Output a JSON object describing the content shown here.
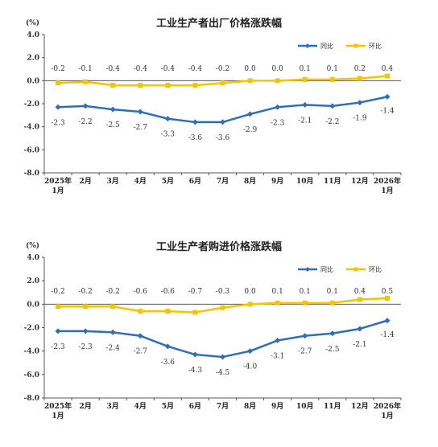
{
  "chart_data": [
    {
      "type": "line",
      "title": "工业生产者出厂价格涨跌幅",
      "unit": "(%)",
      "ylim": [
        -8.0,
        4.0
      ],
      "yticks": [
        "4.0",
        "2.0",
        "0.0",
        "-2.0",
        "-4.0",
        "-6.0",
        "-8.0"
      ],
      "categories": [
        "2025年|1月",
        "2月",
        "3月",
        "4月",
        "5月",
        "6月",
        "7月",
        "8月",
        "9月",
        "10月",
        "11月",
        "12月",
        "2026年|1月"
      ],
      "grid": false,
      "legend_position": "top-right",
      "series": [
        {
          "name": "同比",
          "color": "#2e6fb7",
          "values": [
            -2.3,
            -2.2,
            -2.5,
            -2.7,
            -3.3,
            -3.6,
            -3.6,
            -2.9,
            -2.3,
            -2.1,
            -2.2,
            -1.9,
            -1.4
          ],
          "labels": [
            "-2.3",
            "-2.2",
            "-2.5",
            "-2.7",
            "-3.3",
            "-3.6",
            "-3.6",
            "-2.9",
            "-2.3",
            "-2.1",
            "-2.2",
            "-1.9",
            "-1.4"
          ]
        },
        {
          "name": "环比",
          "color": "#f5c400",
          "values": [
            -0.2,
            -0.1,
            -0.4,
            -0.4,
            -0.4,
            -0.4,
            -0.2,
            0.0,
            0.0,
            0.1,
            0.1,
            0.2,
            0.4
          ],
          "labels": [
            "-0.2",
            "-0.1",
            "-0.4",
            "-0.4",
            "-0.4",
            "-0.4",
            "-0.2",
            "0.0",
            "0.0",
            "0.1",
            "0.1",
            "0.2",
            "0.4"
          ]
        }
      ]
    },
    {
      "type": "line",
      "title": "工业生产者购进价格涨跌幅",
      "unit": "(%)",
      "ylim": [
        -8.0,
        4.0
      ],
      "yticks": [
        "4.0",
        "2.0",
        "0.0",
        "-2.0",
        "-4.0",
        "-6.0",
        "-8.0"
      ],
      "categories": [
        "2025年|1月",
        "2月",
        "3月",
        "4月",
        "5月",
        "6月",
        "7月",
        "8月",
        "9月",
        "10月",
        "11月",
        "12月",
        "2026年|1月"
      ],
      "grid": false,
      "legend_position": "top-right",
      "series": [
        {
          "name": "同比",
          "color": "#2e6fb7",
          "values": [
            -2.3,
            -2.3,
            -2.4,
            -2.7,
            -3.6,
            -4.3,
            -4.5,
            -4.0,
            -3.1,
            -2.7,
            -2.5,
            -2.1,
            -1.4
          ],
          "labels": [
            "-2.3",
            "-2.3",
            "-2.4",
            "-2.7",
            "-3.6",
            "-4.3",
            "-4.5",
            "-4.0",
            "-3.1",
            "-2.7",
            "-2.5",
            "-2.1",
            "-1.4"
          ]
        },
        {
          "name": "环比",
          "color": "#f5c400",
          "values": [
            -0.2,
            -0.2,
            -0.2,
            -0.6,
            -0.6,
            -0.7,
            -0.3,
            0.0,
            0.1,
            0.1,
            0.1,
            0.4,
            0.5
          ],
          "labels": [
            "-0.2",
            "-0.2",
            "-0.2",
            "-0.6",
            "-0.6",
            "-0.7",
            "-0.3",
            "0.0",
            "0.1",
            "0.1",
            "0.1",
            "0.4",
            "0.5"
          ]
        }
      ]
    }
  ]
}
